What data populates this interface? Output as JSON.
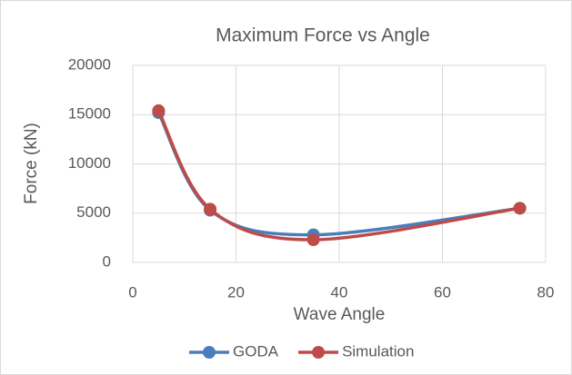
{
  "chart_data": {
    "type": "line",
    "title": "Maximum Force vs Angle",
    "x_label": "Wave Angle",
    "y_label": "Force (kN)",
    "x": [
      5,
      15,
      35,
      75
    ],
    "series": [
      {
        "name": "GODA",
        "color": "#4a7ebb",
        "values": [
          15200,
          5300,
          2800,
          5500
        ]
      },
      {
        "name": "Simulation",
        "color": "#be4b48",
        "values": [
          15400,
          5400,
          2300,
          5500
        ]
      }
    ],
    "xlim": [
      0,
      80
    ],
    "xticks": [
      0,
      20,
      40,
      60,
      80
    ],
    "ylim": [
      0,
      20000
    ],
    "yticks": [
      0,
      5000,
      10000,
      15000,
      20000
    ],
    "grid": true,
    "smooth": true,
    "legend": "bottom"
  }
}
